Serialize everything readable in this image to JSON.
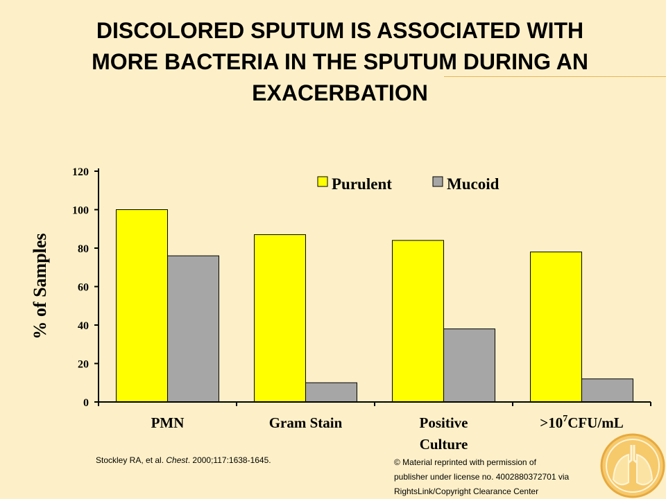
{
  "slide": {
    "title_lines": [
      "DISCOLORED SPUTUM IS ASSOCIATED WITH",
      "MORE BACTERIA IN THE SPUTUM DURING AN",
      "EXACERBATION"
    ],
    "citation": {
      "authors": "Stockley RA, et al. ",
      "journal": "Chest",
      "details": ". 2000;117:1638-1645."
    },
    "copyright_lines": [
      "© Material reprinted with permission of",
      "publisher under license no. 4002880372701  via",
      "RightsLink/Copyright Clearance Center"
    ],
    "logo_icon": "lungs-logo-icon"
  },
  "chart_data": {
    "type": "bar",
    "categories": [
      [
        "PMN"
      ],
      [
        "Gram Stain"
      ],
      [
        "Positive",
        "Culture"
      ],
      [
        ">10",
        "7",
        "CFU/mL"
      ]
    ],
    "series": [
      {
        "name": "Purulent",
        "color": "#ffff00",
        "values": [
          100,
          87,
          84,
          78
        ]
      },
      {
        "name": "Mucoid",
        "color": "#a6a6a6",
        "values": [
          76,
          10,
          38,
          12
        ]
      }
    ],
    "ylabel": "% of Samples",
    "ylim": [
      0,
      120
    ],
    "yticks": [
      0,
      20,
      40,
      60,
      80,
      100,
      120
    ],
    "grid": false,
    "legend_position": "top-right"
  }
}
